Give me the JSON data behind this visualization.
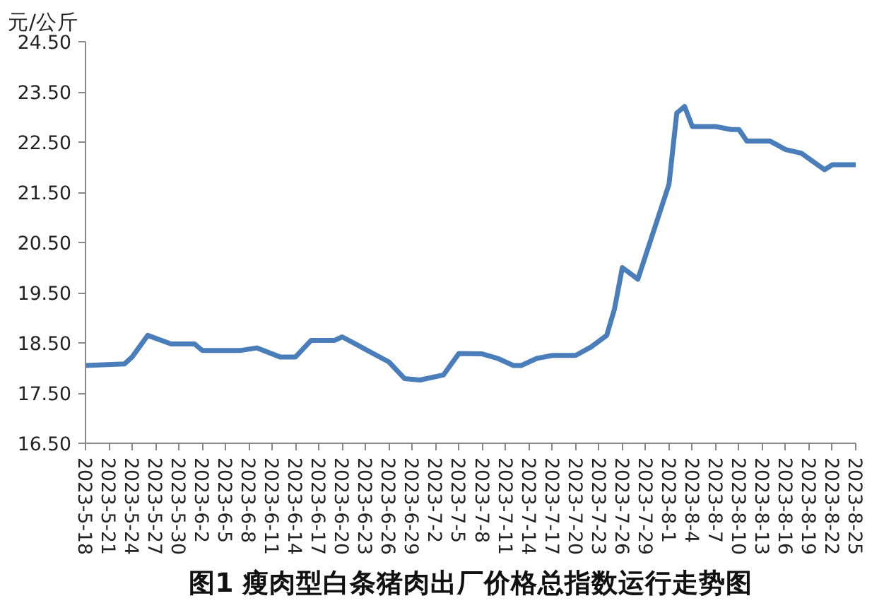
{
  "chart_data": {
    "type": "line",
    "title": "图1 瘦肉型白条猪肉出厂价格总指数运行走势图",
    "ylabel": "元/公斤",
    "x": [
      "2023-05-18",
      "2023-05-23",
      "2023-05-24",
      "2023-05-26",
      "2023-05-29",
      "2023-06-01",
      "2023-06-02",
      "2023-06-07",
      "2023-06-09",
      "2023-06-12",
      "2023-06-14",
      "2023-06-16",
      "2023-06-19",
      "2023-06-20",
      "2023-06-26",
      "2023-06-28",
      "2023-06-30",
      "2023-07-03",
      "2023-07-05",
      "2023-07-08",
      "2023-07-10",
      "2023-07-12",
      "2023-07-13",
      "2023-07-15",
      "2023-07-17",
      "2023-07-20",
      "2023-07-22",
      "2023-07-24",
      "2023-07-25",
      "2023-07-26",
      "2023-07-28",
      "2023-08-01",
      "2023-08-02",
      "2023-08-03",
      "2023-08-04",
      "2023-08-07",
      "2023-08-09",
      "2023-08-10",
      "2023-08-11",
      "2023-08-14",
      "2023-08-16",
      "2023-08-18",
      "2023-08-21",
      "2023-08-22",
      "2023-08-25"
    ],
    "series": [
      {
        "color": "#4a7ebb",
        "values": [
          18.05,
          18.08,
          18.22,
          18.65,
          18.48,
          18.48,
          18.35,
          18.35,
          18.4,
          18.22,
          18.22,
          18.55,
          18.55,
          18.62,
          18.12,
          17.79,
          17.76,
          17.86,
          18.29,
          18.28,
          18.19,
          18.05,
          18.05,
          18.19,
          18.25,
          18.25,
          18.42,
          18.65,
          19.18,
          20.0,
          19.77,
          21.66,
          23.08,
          23.21,
          22.81,
          22.81,
          22.75,
          22.75,
          22.52,
          22.52,
          22.35,
          22.28,
          21.95,
          22.05,
          22.05
        ]
      }
    ],
    "ylim": [
      16.5,
      24.5
    ],
    "yticks": [
      {
        "value": 16.5,
        "label": "16.50"
      },
      {
        "value": 17.5,
        "label": "17.50"
      },
      {
        "value": 18.5,
        "label": "18.50"
      },
      {
        "value": 19.5,
        "label": "19.50"
      },
      {
        "value": 20.5,
        "label": "20.50"
      },
      {
        "value": 21.5,
        "label": "21.50"
      },
      {
        "value": 22.5,
        "label": "22.50"
      },
      {
        "value": 23.5,
        "label": "23.50"
      },
      {
        "value": 24.5,
        "label": "24.50"
      }
    ],
    "xlim": [
      "2023-05-18",
      "2023-08-25"
    ],
    "xticks": [
      {
        "value": "2023-05-18",
        "label": "2023-5-18"
      },
      {
        "value": "2023-05-21",
        "label": "2023-5-21"
      },
      {
        "value": "2023-05-24",
        "label": "2023-5-24"
      },
      {
        "value": "2023-05-27",
        "label": "2023-5-27"
      },
      {
        "value": "2023-05-30",
        "label": "2023-5-30"
      },
      {
        "value": "2023-06-02",
        "label": "2023-6-2"
      },
      {
        "value": "2023-06-05",
        "label": "2023-6-5"
      },
      {
        "value": "2023-06-08",
        "label": "2023-6-8"
      },
      {
        "value": "2023-06-11",
        "label": "2023-6-11"
      },
      {
        "value": "2023-06-14",
        "label": "2023-6-14"
      },
      {
        "value": "2023-06-17",
        "label": "2023-6-17"
      },
      {
        "value": "2023-06-20",
        "label": "2023-6-20"
      },
      {
        "value": "2023-06-23",
        "label": "2023-6-23"
      },
      {
        "value": "2023-06-26",
        "label": "2023-6-26"
      },
      {
        "value": "2023-06-29",
        "label": "2023-6-29"
      },
      {
        "value": "2023-07-02",
        "label": "2023-7-2"
      },
      {
        "value": "2023-07-05",
        "label": "2023-7-5"
      },
      {
        "value": "2023-07-08",
        "label": "2023-7-8"
      },
      {
        "value": "2023-07-11",
        "label": "2023-7-11"
      },
      {
        "value": "2023-07-14",
        "label": "2023-7-14"
      },
      {
        "value": "2023-07-17",
        "label": "2023-7-17"
      },
      {
        "value": "2023-07-20",
        "label": "2023-7-20"
      },
      {
        "value": "2023-07-23",
        "label": "2023-7-23"
      },
      {
        "value": "2023-07-26",
        "label": "2023-7-26"
      },
      {
        "value": "2023-07-29",
        "label": "2023-7-29"
      },
      {
        "value": "2023-08-01",
        "label": "2023-8-1"
      },
      {
        "value": "2023-08-04",
        "label": "2023-8-4"
      },
      {
        "value": "2023-08-07",
        "label": "2023-8-7"
      },
      {
        "value": "2023-08-10",
        "label": "2023-8-10"
      },
      {
        "value": "2023-08-13",
        "label": "2023-8-13"
      },
      {
        "value": "2023-08-16",
        "label": "2023-8-16"
      },
      {
        "value": "2023-08-19",
        "label": "2023-8-19"
      },
      {
        "value": "2023-08-22",
        "label": "2023-8-22"
      },
      {
        "value": "2023-08-25",
        "label": "2023-8-25"
      }
    ],
    "grid": false,
    "marker": "none",
    "line_style": "solid"
  }
}
